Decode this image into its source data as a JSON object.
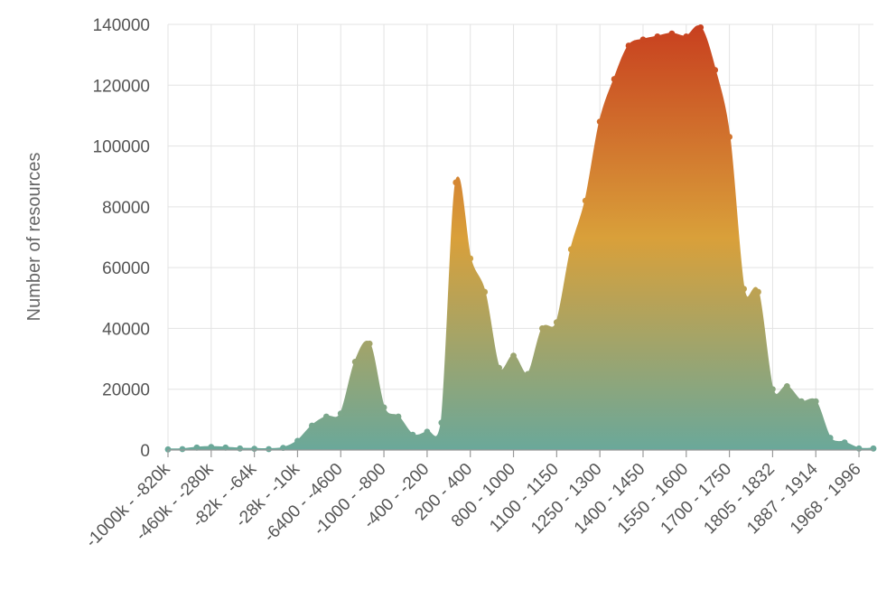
{
  "chart_data": {
    "type": "area",
    "title": "",
    "ylabel": "Number of resources",
    "xlabel": "",
    "ylim": [
      0,
      140000
    ],
    "yticks": [
      0,
      20000,
      40000,
      60000,
      80000,
      100000,
      120000,
      140000
    ],
    "y_tick_labels": [
      "0",
      "20000",
      "40000",
      "60000",
      "80000",
      "100000",
      "120000",
      "140000"
    ],
    "x_tick_labels": [
      "-1000k - -820k",
      "-460k - -280k",
      "-82k - -64k",
      "-28k - -10k",
      "-6400 - -4600",
      "-1000 - -800",
      "-400 - -200",
      "200 - 400",
      "800 - 1000",
      "1100 - 1150",
      "1250 - 1300",
      "1400 - 1450",
      "1550 - 1600",
      "1700 - 1750",
      "1805 - 1832",
      "1887 - 1914",
      "1968 - 1996"
    ],
    "x_tick_positions": [
      0,
      3,
      6,
      9,
      12,
      15,
      18,
      21,
      24,
      27,
      30,
      33,
      36,
      39,
      42,
      45,
      48
    ],
    "grid": true,
    "gradient": [
      "#c8401f",
      "#d9a03a",
      "#6aa89a"
    ],
    "values": [
      200,
      300,
      800,
      1000,
      800,
      500,
      400,
      300,
      700,
      3000,
      8000,
      11000,
      12000,
      29000,
      35000,
      14000,
      11000,
      5000,
      6000,
      9000,
      88000,
      63000,
      52000,
      27000,
      31000,
      25000,
      40000,
      42000,
      66000,
      82000,
      108000,
      122000,
      133000,
      135000,
      136000,
      137000,
      136000,
      139000,
      125000,
      103000,
      53000,
      52000,
      20000,
      21000,
      16000,
      16000,
      4000,
      2500,
      500,
      500
    ]
  }
}
